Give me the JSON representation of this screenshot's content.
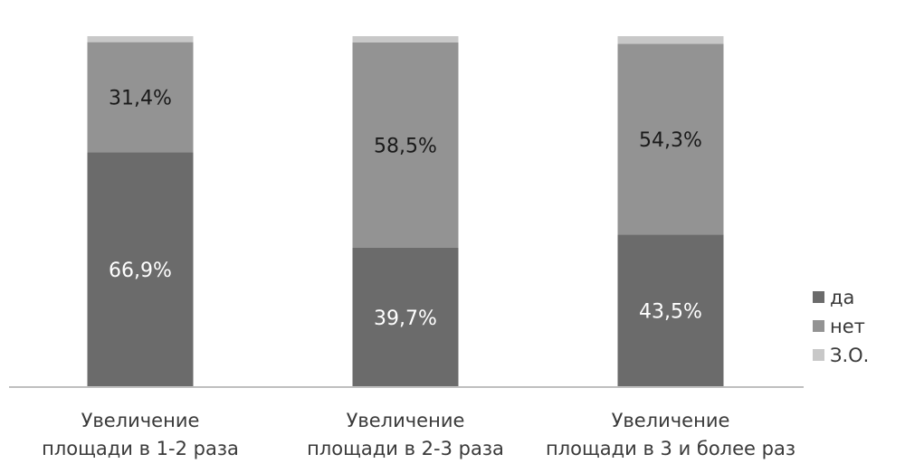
{
  "chart_data": {
    "type": "bar",
    "stacked": true,
    "categories": [
      [
        "Увеличение",
        "площади в 1-2 раза"
      ],
      [
        "Увеличение",
        "площади в 2-3 раза"
      ],
      [
        "Увеличение",
        "площади в 3 и более раз"
      ]
    ],
    "series": [
      {
        "name": "да",
        "values": [
          66.9,
          39.7,
          43.5
        ],
        "color": "#6b6b6b",
        "label_color": "#ffffff"
      },
      {
        "name": "нет",
        "values": [
          31.4,
          58.5,
          54.3
        ],
        "color": "#939393",
        "label_color": "#1a1a1a"
      },
      {
        "name": "З.О.",
        "values": [
          1.7,
          1.8,
          2.2
        ],
        "color": "#c8c8c8",
        "label_color": "#1a1a1a"
      }
    ],
    "data_labels": [
      [
        "66,9%",
        "39,7%",
        "43,5%"
      ],
      [
        "31,4%",
        "58,5%",
        "54,3%"
      ],
      [
        "",
        "",
        ""
      ]
    ],
    "ylim": [
      0,
      100
    ],
    "grid": false,
    "legend": "right",
    "axis_color": "#bfbfbf"
  }
}
